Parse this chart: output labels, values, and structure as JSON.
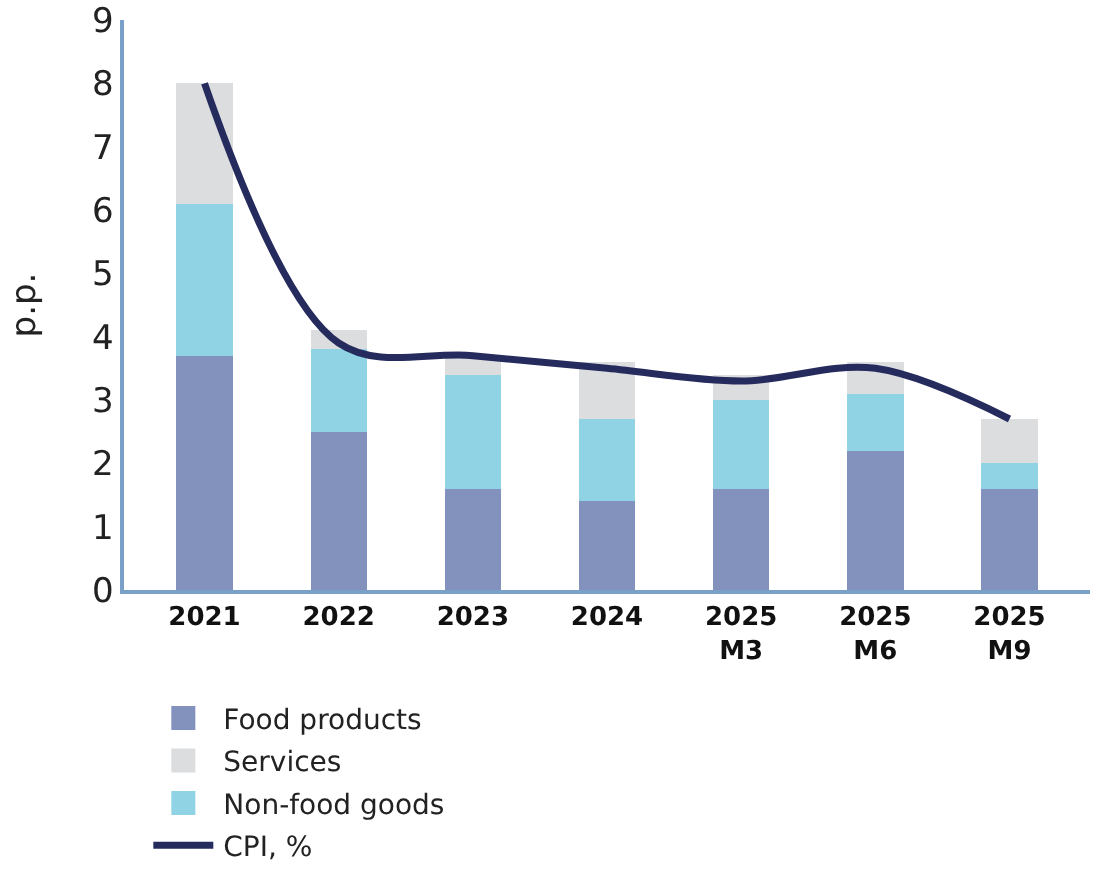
{
  "chart_data": {
    "type": "bar",
    "stacked": true,
    "ylabel": "p.p.",
    "categories": [
      "2021",
      "2022",
      "2023",
      "2024",
      "2025\nM3",
      "2025\nM6",
      "2025\nM9"
    ],
    "series": [
      {
        "name": "Food products",
        "color": "#8391bd",
        "values": [
          3.7,
          2.5,
          1.6,
          1.4,
          1.6,
          2.2,
          1.6
        ]
      },
      {
        "name": "Non-food goods",
        "color": "#8fd3e4",
        "values": [
          2.4,
          1.3,
          1.8,
          1.3,
          1.4,
          0.9,
          0.4
        ]
      },
      {
        "name": "Services",
        "color": "#dcdddf",
        "values": [
          1.9,
          0.3,
          0.3,
          0.9,
          0.4,
          0.5,
          0.7
        ]
      },
      {
        "name": "CPI, %",
        "type": "line",
        "color": "#262b5e",
        "values": [
          8.0,
          3.9,
          3.7,
          3.5,
          3.3,
          3.5,
          2.7
        ]
      }
    ],
    "ylim": [
      0,
      9
    ],
    "yticks": [
      0,
      1,
      2,
      3,
      4,
      5,
      6,
      7,
      8,
      9
    ],
    "grid": false,
    "legend": "bottom",
    "marker": "none",
    "line_style": "solid"
  }
}
